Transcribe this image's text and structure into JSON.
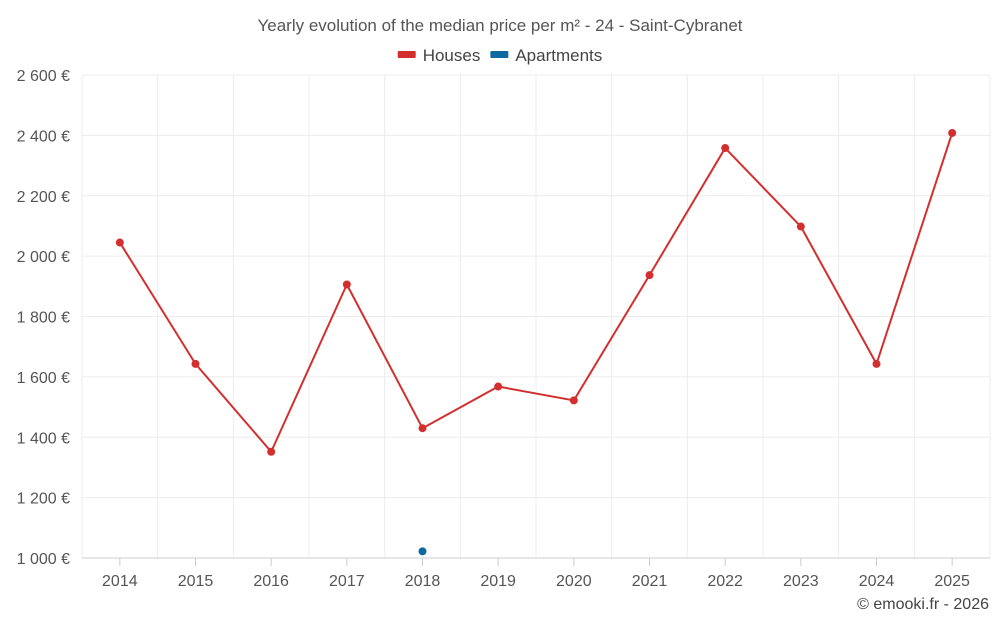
{
  "chart_data": {
    "type": "line",
    "title": "Yearly evolution of the median price per m² - 24 - Saint-Cybranet",
    "categories": [
      "2014",
      "2015",
      "2016",
      "2017",
      "2018",
      "2019",
      "2020",
      "2021",
      "2022",
      "2023",
      "2024",
      "2025"
    ],
    "series": [
      {
        "name": "Houses",
        "color": "#d32f2f",
        "values": [
          2045,
          1643,
          1352,
          1906,
          1430,
          1568,
          1522,
          1937,
          2358,
          2098,
          1643,
          2408
        ]
      },
      {
        "name": "Apartments",
        "color": "#0d6aa1",
        "values": [
          null,
          null,
          null,
          null,
          1022,
          null,
          null,
          null,
          null,
          null,
          null,
          null
        ]
      }
    ],
    "ylim": [
      1000,
      2600
    ],
    "yticks": [
      1000,
      1200,
      1400,
      1600,
      1800,
      2000,
      2200,
      2400,
      2600
    ],
    "ytick_labels": [
      "1 000 €",
      "1 200 €",
      "1 400 €",
      "1 600 €",
      "1 800 €",
      "2 000 €",
      "2 200 €",
      "2 400 €",
      "2 600 €"
    ],
    "xlabel": "",
    "ylabel": "",
    "grid": true,
    "legend_position": "top-center"
  },
  "credit": "© emooki.fr - 2026"
}
